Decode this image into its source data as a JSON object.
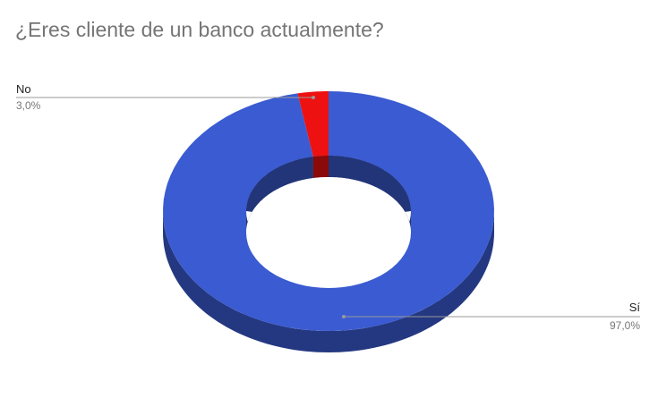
{
  "chart_data": {
    "type": "pie",
    "style": "3d-donut",
    "title": "¿Eres cliente de un banco actualmente?",
    "slices": [
      {
        "label": "Sí",
        "value": 97.0,
        "percent_label": "97,0%",
        "color": "#3a5bd1"
      },
      {
        "label": "No",
        "value": 3.0,
        "percent_label": "3,0%",
        "color": "#ee1111"
      }
    ]
  }
}
